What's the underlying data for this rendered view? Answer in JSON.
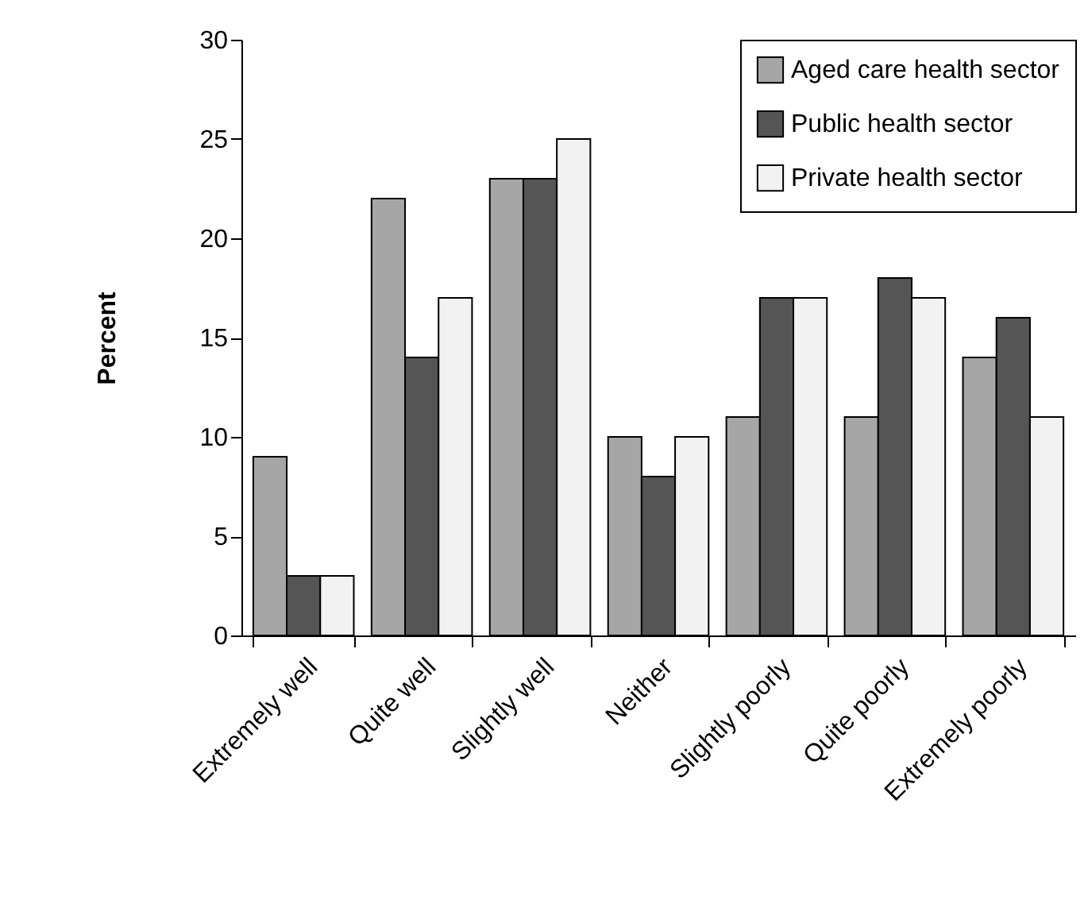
{
  "chart_data": {
    "type": "bar",
    "ylabel": "Percent",
    "categories": [
      "Extremely well",
      "Quite well",
      "Slightly well",
      "Neither",
      "Slightly poorly",
      "Quite poorly",
      "Extremely poorly"
    ],
    "series": [
      {
        "name": "Aged care health sector",
        "color": "#a6a6a6",
        "values": [
          9,
          22,
          23,
          10,
          11,
          11,
          14
        ]
      },
      {
        "name": "Public health sector",
        "color": "#555555",
        "values": [
          3,
          14,
          23,
          8,
          17,
          18,
          16
        ]
      },
      {
        "name": "Private health sector",
        "color": "#f2f2f2",
        "values": [
          3,
          17,
          25,
          10,
          17,
          17,
          11
        ]
      }
    ],
    "ylim": [
      0,
      30
    ],
    "yticks": [
      0,
      5,
      10,
      15,
      20,
      25,
      30
    ],
    "legend": "top right"
  }
}
